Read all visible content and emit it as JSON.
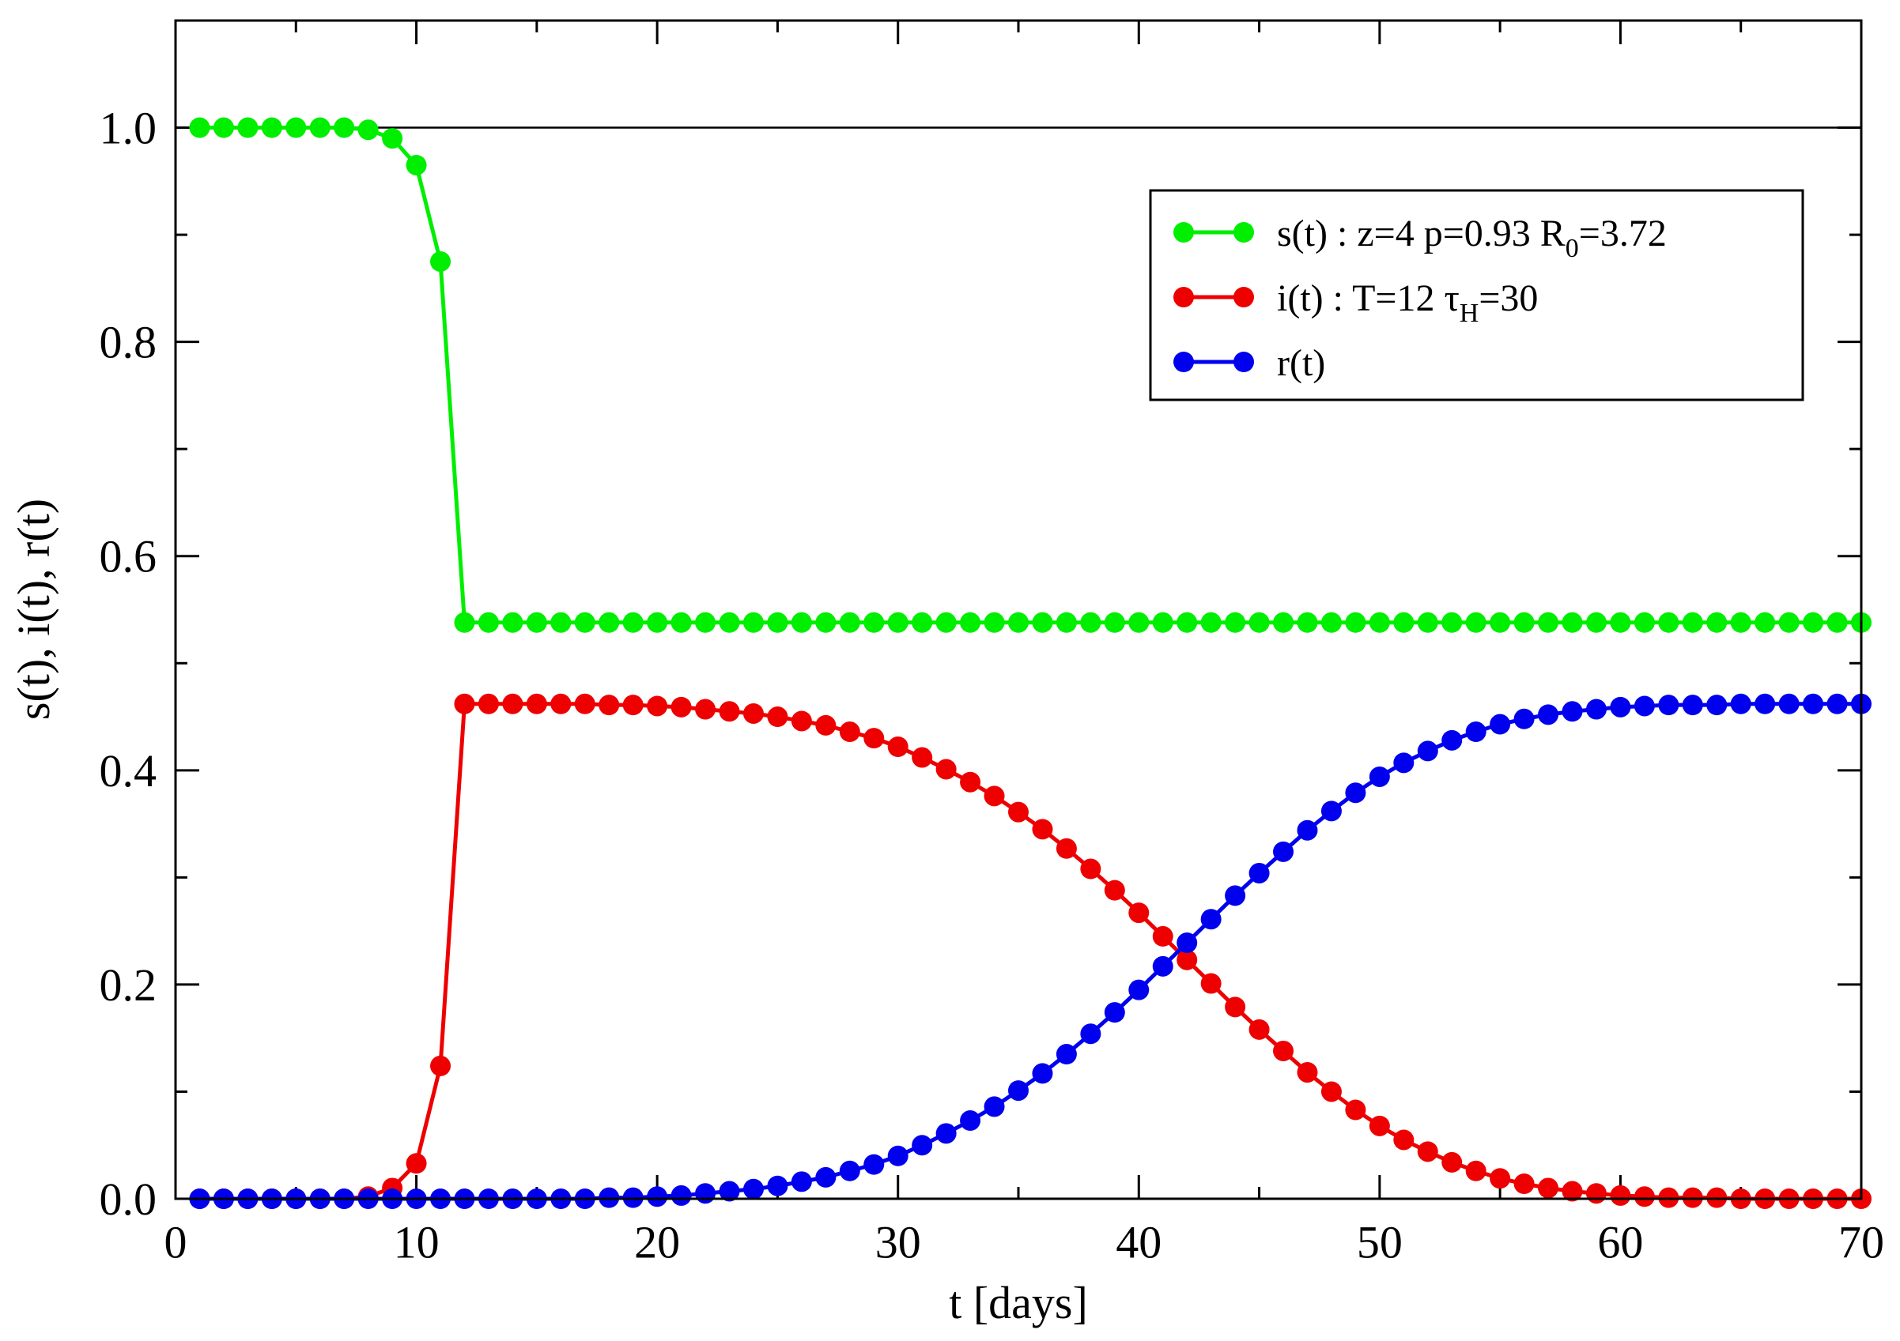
{
  "chart_data": {
    "type": "line",
    "title": "",
    "xlabel": "t [days]",
    "ylabel": "s(t), i(t), r(t)",
    "xlim": [
      0,
      70
    ],
    "ylim": [
      0,
      1.1
    ],
    "xticks": [
      0,
      10,
      20,
      30,
      40,
      50,
      60,
      70
    ],
    "xtick_labels": [
      "0",
      "10",
      "20",
      "30",
      "40",
      "50",
      "60",
      "70"
    ],
    "yticks": [
      0.0,
      0.2,
      0.4,
      0.6,
      0.8,
      1.0
    ],
    "ytick_labels": [
      "0.0",
      "0.2",
      "0.4",
      "0.6",
      "0.8",
      "1.0"
    ],
    "reference_line_y": 1.0,
    "legend_position": "top-right",
    "x": [
      1,
      2,
      3,
      4,
      5,
      6,
      7,
      8,
      9,
      10,
      11,
      12,
      13,
      14,
      15,
      16,
      17,
      18,
      19,
      20,
      21,
      22,
      23,
      24,
      25,
      26,
      27,
      28,
      29,
      30,
      31,
      32,
      33,
      34,
      35,
      36,
      37,
      38,
      39,
      40,
      41,
      42,
      43,
      44,
      45,
      46,
      47,
      48,
      49,
      50,
      51,
      52,
      53,
      54,
      55,
      56,
      57,
      58,
      59,
      60,
      61,
      62,
      63,
      64,
      65,
      66,
      67,
      68,
      69,
      70
    ],
    "series": [
      {
        "name": "s(t)",
        "legend": {
          "main": "s(t) : z=4  p=0.93  R",
          "sub": "0",
          "tail": "=3.72"
        },
        "color": "#00ee00",
        "values": [
          1.0,
          1.0,
          1.0,
          1.0,
          1.0,
          1.0,
          1.0,
          0.998,
          0.99,
          0.965,
          0.875,
          0.538,
          0.538,
          0.538,
          0.538,
          0.538,
          0.538,
          0.538,
          0.538,
          0.538,
          0.538,
          0.538,
          0.538,
          0.538,
          0.538,
          0.538,
          0.538,
          0.538,
          0.538,
          0.538,
          0.538,
          0.538,
          0.538,
          0.538,
          0.538,
          0.538,
          0.538,
          0.538,
          0.538,
          0.538,
          0.538,
          0.538,
          0.538,
          0.538,
          0.538,
          0.538,
          0.538,
          0.538,
          0.538,
          0.538,
          0.538,
          0.538,
          0.538,
          0.538,
          0.538,
          0.538,
          0.538,
          0.538,
          0.538,
          0.538,
          0.538,
          0.538,
          0.538,
          0.538,
          0.538,
          0.538,
          0.538,
          0.538,
          0.538,
          0.538
        ]
      },
      {
        "name": "i(t)",
        "legend": {
          "main": "i(t) : T=12   τ",
          "sub": "H",
          "tail": "=30"
        },
        "color": "#ee0000",
        "values": [
          0.0,
          0.0,
          0.0,
          0.0,
          0.0,
          0.0,
          0.0,
          0.002,
          0.01,
          0.033,
          0.124,
          0.462,
          0.462,
          0.462,
          0.462,
          0.462,
          0.462,
          0.461,
          0.461,
          0.46,
          0.459,
          0.457,
          0.455,
          0.453,
          0.45,
          0.446,
          0.442,
          0.436,
          0.43,
          0.422,
          0.412,
          0.401,
          0.389,
          0.376,
          0.361,
          0.345,
          0.327,
          0.308,
          0.288,
          0.267,
          0.245,
          0.223,
          0.201,
          0.179,
          0.158,
          0.138,
          0.118,
          0.1,
          0.083,
          0.068,
          0.055,
          0.044,
          0.034,
          0.026,
          0.019,
          0.014,
          0.01,
          0.007,
          0.005,
          0.003,
          0.002,
          0.001,
          0.001,
          0.001,
          0.0,
          0.0,
          0.0,
          0.0,
          0.0,
          0.0
        ]
      },
      {
        "name": "r(t)",
        "legend": {
          "main": "r(t)",
          "sub": "",
          "tail": ""
        },
        "color": "#0000ee",
        "values": [
          0.0,
          0.0,
          0.0,
          0.0,
          0.0,
          0.0,
          0.0,
          0.0,
          0.0,
          0.0,
          0.0,
          0.0,
          0.0,
          0.0,
          0.0,
          0.0,
          0.0,
          0.001,
          0.001,
          0.002,
          0.003,
          0.005,
          0.007,
          0.009,
          0.012,
          0.016,
          0.02,
          0.026,
          0.032,
          0.04,
          0.05,
          0.061,
          0.073,
          0.086,
          0.101,
          0.117,
          0.135,
          0.154,
          0.174,
          0.195,
          0.217,
          0.239,
          0.261,
          0.283,
          0.304,
          0.324,
          0.344,
          0.362,
          0.379,
          0.394,
          0.407,
          0.418,
          0.428,
          0.436,
          0.443,
          0.448,
          0.452,
          0.455,
          0.457,
          0.459,
          0.46,
          0.461,
          0.461,
          0.461,
          0.462,
          0.462,
          0.462,
          0.462,
          0.462,
          0.462
        ]
      }
    ]
  }
}
